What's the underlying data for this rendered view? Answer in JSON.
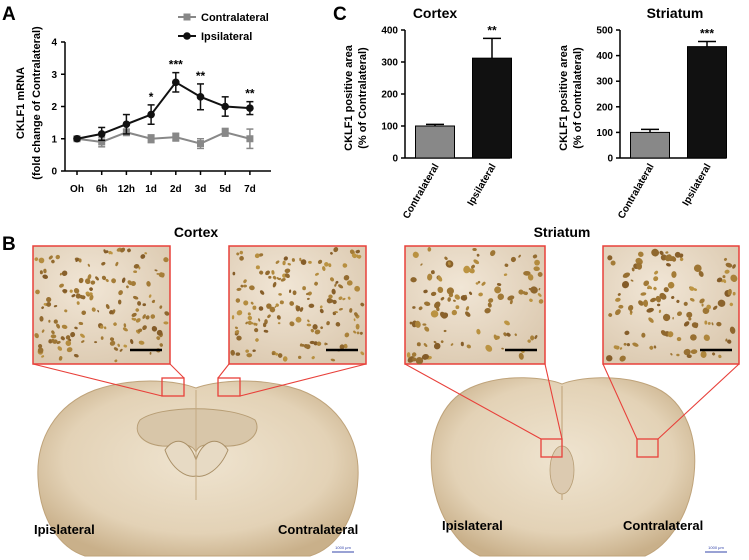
{
  "panels": {
    "a": "A",
    "b": "B",
    "c": "C"
  },
  "colors": {
    "contra": "#888888",
    "ipsi": "#111111",
    "inset_border": "#e8403a",
    "tissue": "#ede3d2",
    "nuclei": "#8a5a28"
  },
  "chart_data": [
    {
      "type": "line",
      "panel": "A",
      "title": "",
      "xlabel": "",
      "ylabel_line1": "CKLF1 mRNA",
      "ylabel_line2": "(fold change of Contralateral)",
      "categories": [
        "Oh",
        "6h",
        "12h",
        "1d",
        "2d",
        "3d",
        "5d",
        "7d"
      ],
      "yticks": [
        "0",
        "1",
        "2",
        "3",
        "4"
      ],
      "ylim": [
        0,
        4
      ],
      "legend_position": "top-right",
      "series": [
        {
          "name": "Contralateral",
          "values": [
            1.0,
            0.9,
            1.2,
            1.0,
            1.05,
            0.85,
            1.2,
            1.0
          ],
          "errors": [
            0.05,
            0.15,
            0.1,
            0.12,
            0.12,
            0.15,
            0.12,
            0.3
          ]
        },
        {
          "name": "Ipsilateral",
          "values": [
            1.0,
            1.15,
            1.45,
            1.75,
            2.75,
            2.3,
            2.0,
            1.95
          ],
          "errors": [
            0.05,
            0.2,
            0.3,
            0.3,
            0.3,
            0.4,
            0.3,
            0.2
          ]
        }
      ],
      "annotations": [
        "",
        "",
        "",
        "*",
        "***",
        "**",
        "",
        "**"
      ]
    },
    {
      "type": "bar",
      "panel": "C",
      "title": "Cortex",
      "ylabel_line1": "CKLF1 positive area",
      "ylabel_line2": "(% of Contralateral)",
      "categories": [
        "Contralateral",
        "Ipsilateral"
      ],
      "values": [
        100,
        312
      ],
      "errors": [
        5,
        62
      ],
      "yticks": [
        "0",
        "100",
        "200",
        "300",
        "400"
      ],
      "ylim": [
        0,
        400
      ],
      "annotations": [
        "",
        "**"
      ]
    },
    {
      "type": "bar",
      "panel": "C",
      "title": "Striatum",
      "ylabel_line1": "CKLF1 positive area",
      "ylabel_line2": "(% of Contralateral)",
      "categories": [
        "Contralateral",
        "Ipsilateral"
      ],
      "values": [
        100,
        435
      ],
      "errors": [
        12,
        20
      ],
      "yticks": [
        "0",
        "100",
        "200",
        "300",
        "400",
        "500"
      ],
      "ylim": [
        0,
        500
      ],
      "annotations": [
        "",
        "***"
      ]
    }
  ],
  "histology": {
    "cortex_title": "Cortex",
    "striatum_title": "Striatum",
    "left_side_label": "Ipislateral",
    "right_side_label": "Contralateral",
    "scale_bar_label": "1000 μm"
  }
}
